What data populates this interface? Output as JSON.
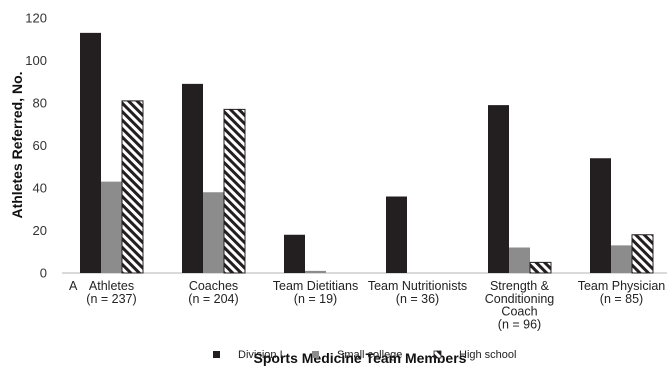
{
  "chart_data": {
    "type": "bar",
    "title": "",
    "xlabel": "Sports Medicine Team Members",
    "ylabel": "Athletes Referred, No.",
    "ylim": [
      0,
      120
    ],
    "yticks": [
      "0",
      "20",
      "40",
      "60",
      "80",
      "100",
      "120"
    ],
    "grid": false,
    "legend_position": "bottom",
    "stray_axis_text": "A",
    "categories": [
      [
        "Athletes",
        "(n = 237)"
      ],
      [
        "Coaches",
        "(n = 204)"
      ],
      [
        "Team Dietitians",
        "(n = 19)"
      ],
      [
        "Team Nutritionists",
        "(n = 36)"
      ],
      [
        "Strength &",
        "Conditioning",
        "Coach",
        "(n = 96)"
      ],
      [
        "Team Physician",
        "(n = 85)"
      ]
    ],
    "series": [
      {
        "name": "Division I",
        "values": [
          113,
          89,
          18,
          36,
          79,
          54
        ],
        "color": "#231f20",
        "pattern": "solid"
      },
      {
        "name": "Small college",
        "values": [
          43,
          38,
          1,
          0,
          12,
          13
        ],
        "color": "#8c8c8c",
        "pattern": "solid"
      },
      {
        "name": "High school",
        "values": [
          81,
          77,
          0,
          0,
          5,
          18
        ],
        "color": "#231f20",
        "pattern": "diagonal-hatch"
      }
    ]
  }
}
